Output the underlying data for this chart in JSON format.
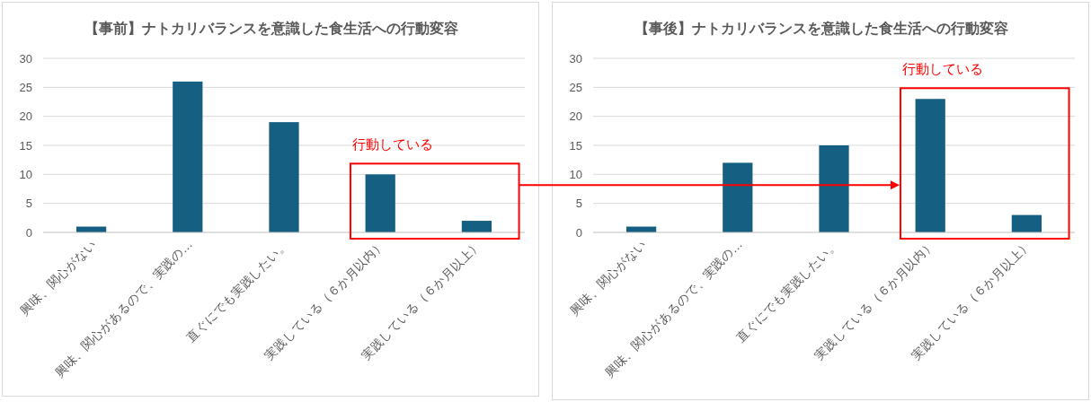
{
  "chart_data": [
    {
      "type": "bar",
      "title": "【事前】ナトカリバランスを意識した食生活への行動変容",
      "categories": [
        "興味、関心がない",
        "興味、関心があるので、実践の…",
        "直ぐにでも実践したい。",
        "実践している（６か月以内）",
        "実践している（６か月以上）"
      ],
      "values": [
        1,
        26,
        19,
        10,
        2
      ],
      "color": "#156082",
      "ylim": [
        0,
        30
      ],
      "yticks": [
        0,
        5,
        10,
        15,
        20,
        25,
        30
      ],
      "grid": "y",
      "annotations": [
        "行動している"
      ]
    },
    {
      "type": "bar",
      "title": "【事後】ナトカリバランスを意識した食生活への行動変容",
      "categories": [
        "興味、関心がない",
        "興味、関心があるので、実践の…",
        "直ぐにでも実践したい。",
        "実践している（６か月以内）",
        "実践している（６か月以上）"
      ],
      "values": [
        1,
        12,
        15,
        23,
        3
      ],
      "color": "#156082",
      "ylim": [
        0,
        30
      ],
      "yticks": [
        0,
        5,
        10,
        15,
        20,
        25,
        30
      ],
      "grid": "y",
      "annotations": [
        "行動している"
      ]
    }
  ]
}
